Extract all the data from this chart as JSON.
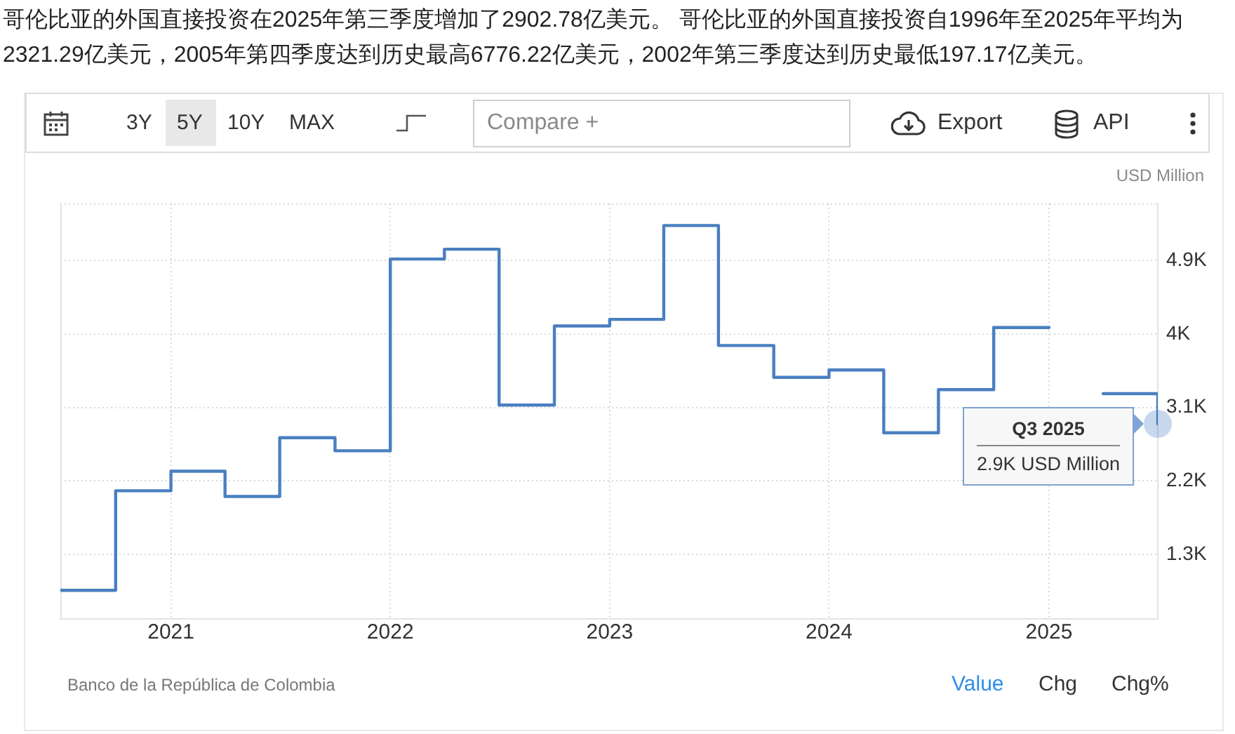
{
  "chart_data": {
    "type": "step",
    "title": "哥伦比亚的外国直接投资在2025年第三季度增加了2902.78亿美元。 哥伦比亚的外国直接投资自1996年至2025年平均为2321.29亿美元，2005年第四季度达到历史最高6776.22亿美元，2002年第三季度达到历史最低197.17亿美元。",
    "ylabel": "USD Million",
    "x": [
      "2020-07",
      "2020-10",
      "2021-01",
      "2021-04",
      "2021-07",
      "2021-10",
      "2022-01",
      "2022-04",
      "2022-07",
      "2022-10",
      "2023-01",
      "2023-04",
      "2023-07",
      "2023-10",
      "2024-01",
      "2024-04",
      "2024-07",
      "2024-10",
      "2025-01",
      "2025-04",
      "2025-07"
    ],
    "series": [
      {
        "color": "#4a7fc1",
        "values": [
          860,
          2080,
          2320,
          2010,
          2730,
          2570,
          4920,
          5040,
          3130,
          4100,
          4180,
          5330,
          3860,
          3470,
          3560,
          2790,
          3320,
          4080,
          null,
          3270,
          2900
        ]
      }
    ],
    "xlim": [
      "2020-07",
      "2025-07"
    ],
    "xticks": [
      "2021",
      "2022",
      "2023",
      "2024",
      "2025"
    ],
    "ylim": [
      510,
      5600
    ],
    "yticks": [
      {
        "value": 1300,
        "label": "1.3K"
      },
      {
        "value": 2200,
        "label": "2.2K"
      },
      {
        "value": 3100,
        "label": "3.1K"
      },
      {
        "value": 4000,
        "label": "4K"
      },
      {
        "value": 4900,
        "label": "4.9K"
      }
    ],
    "grid": true,
    "annotations": [
      "3Y",
      "5Y",
      "10Y",
      "MAX",
      "Compare +",
      "Export",
      "API",
      "Banco de la República de Colombia",
      "Value",
      "Chg",
      "Chg%",
      "Q3 2025",
      "2.9K USD Million"
    ]
  }
}
